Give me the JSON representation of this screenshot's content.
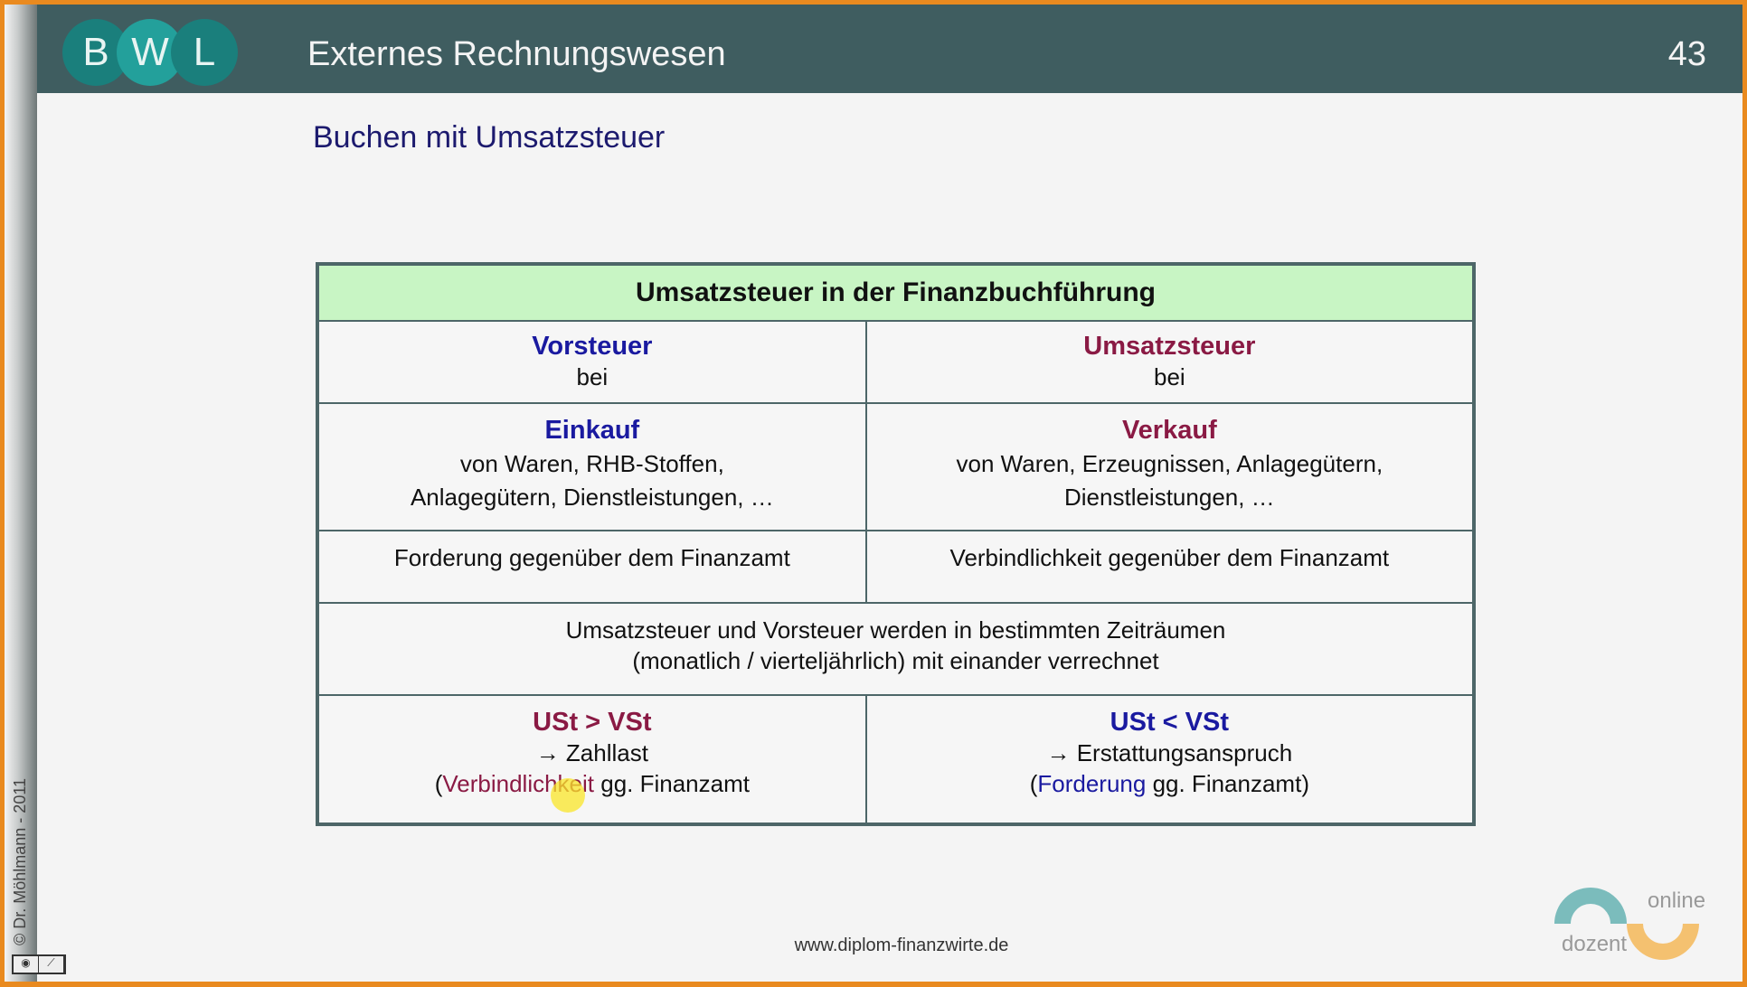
{
  "header": {
    "logo": [
      "B",
      "W",
      "L"
    ],
    "title": "Externes Rechnungswesen",
    "page_number": "43"
  },
  "subtitle": "Buchen mit Umsatzsteuer",
  "table": {
    "title": "Umsatzsteuer in der Finanzbuchführung",
    "left": {
      "head": "Vorsteuer",
      "head_sub": "bei",
      "case": "Einkauf",
      "case_line1": "von Waren, RHB-Stoffen,",
      "case_line2": "Anlagegütern, Dienstleistungen, …",
      "nature": "Forderung gegenüber dem Finanzamt",
      "cmp": "USt > VSt",
      "result": "→ Zahllast",
      "paren_open": "(",
      "paren_word": "Verbindlichkeit",
      "paren_rest": " gg. Finanzamt"
    },
    "right": {
      "head": "Umsatzsteuer",
      "head_sub": "bei",
      "case": "Verkauf",
      "case_line1": "von Waren, Erzeugnissen, Anlagegütern,",
      "case_line2": "Dienstleistungen, …",
      "nature": "Verbindlichkeit gegenüber dem Finanzamt",
      "cmp": "USt < VSt",
      "result": "→ Erstattungsanspruch",
      "paren_open": "(",
      "paren_word": "Forderung",
      "paren_rest": " gg. Finanzamt)"
    },
    "merged_line1": "Umsatzsteuer und Vorsteuer werden in bestimmten Zeiträumen",
    "merged_line2": "(monatlich / vierteljährlich) mit einander verrechnet"
  },
  "footer": "www.diplom-finanzwirte.de",
  "copyright": "© Dr. Möhlmann - 2011",
  "brand": {
    "top": "online",
    "bottom": "dozent"
  },
  "colors": {
    "header": "#3f5d60",
    "accent_orange": "#e98a1f",
    "table_head": "#c8f5c4",
    "blue": "#1a1aa0",
    "red": "#8a1a44"
  }
}
